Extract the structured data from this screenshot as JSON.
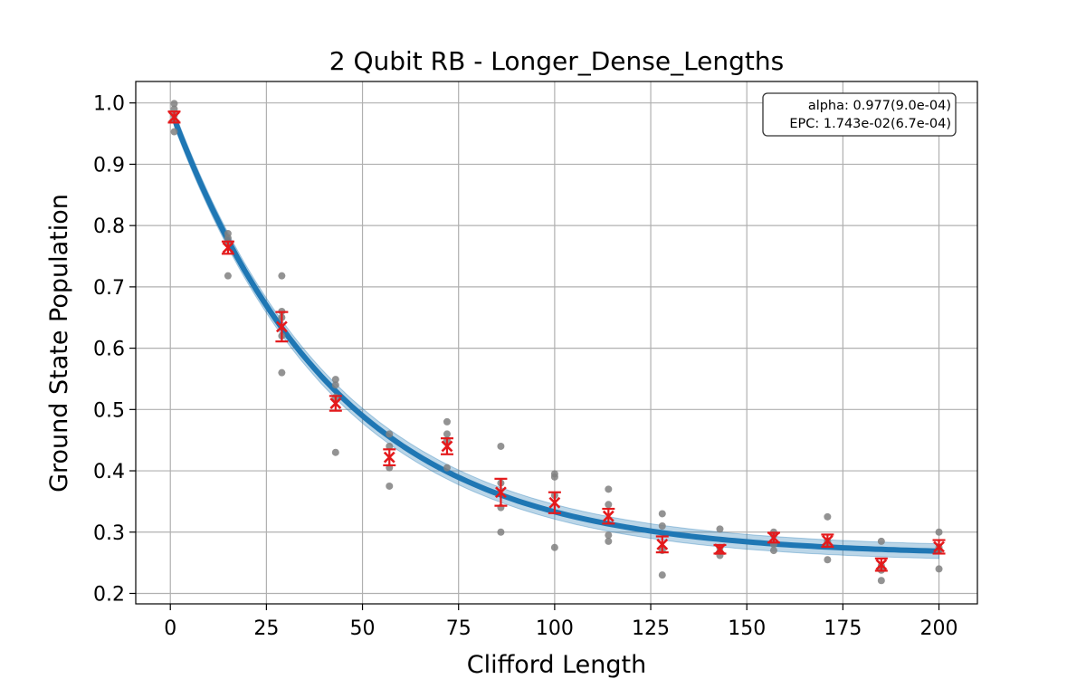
{
  "chart_data": {
    "type": "scatter",
    "title": "2 Qubit RB - Longer_Dense_Lengths",
    "xlabel": "Clifford Length",
    "ylabel": "Ground State Population",
    "xlim": [
      -9,
      210
    ],
    "ylim": [
      0.183,
      1.035
    ],
    "xticks": [
      0,
      25,
      50,
      75,
      100,
      125,
      150,
      175,
      200
    ],
    "yticks": [
      0.2,
      0.3,
      0.4,
      0.5,
      0.6,
      0.7,
      0.8,
      0.9,
      1.0
    ],
    "xtick_labels": [
      "0",
      "25",
      "50",
      "75",
      "100",
      "125",
      "150",
      "175",
      "200"
    ],
    "ytick_labels": [
      "0.2",
      "0.3",
      "0.4",
      "0.5",
      "0.6",
      "0.7",
      "0.8",
      "0.9",
      "1.0"
    ],
    "grid": true,
    "annotation": {
      "lines": [
        "alpha: 0.977(9.0e-04)",
        "EPC: 1.743e-02(6.7e-04)"
      ],
      "placement": "top-right"
    },
    "fit": {
      "model": "A * alpha^x + B",
      "A": 0.729,
      "alpha": 0.977,
      "B": 0.262,
      "band_sigma_y": 0.012,
      "color": "#1f77b4"
    },
    "series": [
      {
        "kind": "raw_samples",
        "color": "#808080",
        "points": [
          [
            1,
            0.999
          ],
          [
            1,
            0.99
          ],
          [
            1,
            0.98
          ],
          [
            1,
            0.972
          ],
          [
            1,
            0.953
          ],
          [
            15,
            0.787
          ],
          [
            15,
            0.78
          ],
          [
            15,
            0.77
          ],
          [
            15,
            0.718
          ],
          [
            29,
            0.718
          ],
          [
            29,
            0.66
          ],
          [
            29,
            0.65
          ],
          [
            29,
            0.62
          ],
          [
            29,
            0.56
          ],
          [
            43,
            0.549
          ],
          [
            43,
            0.54
          ],
          [
            43,
            0.52
          ],
          [
            43,
            0.43
          ],
          [
            57,
            0.46
          ],
          [
            57,
            0.44
          ],
          [
            57,
            0.405
          ],
          [
            57,
            0.375
          ],
          [
            72,
            0.48
          ],
          [
            72,
            0.46
          ],
          [
            72,
            0.45
          ],
          [
            72,
            0.405
          ],
          [
            86,
            0.44
          ],
          [
            86,
            0.38
          ],
          [
            86,
            0.34
          ],
          [
            86,
            0.3
          ],
          [
            100,
            0.395
          ],
          [
            100,
            0.39
          ],
          [
            100,
            0.36
          ],
          [
            100,
            0.275
          ],
          [
            114,
            0.37
          ],
          [
            114,
            0.345
          ],
          [
            114,
            0.295
          ],
          [
            114,
            0.285
          ],
          [
            128,
            0.33
          ],
          [
            128,
            0.31
          ],
          [
            128,
            0.27
          ],
          [
            128,
            0.23
          ],
          [
            143,
            0.305
          ],
          [
            143,
            0.275
          ],
          [
            143,
            0.268
          ],
          [
            143,
            0.262
          ],
          [
            157,
            0.3
          ],
          [
            157,
            0.295
          ],
          [
            157,
            0.28
          ],
          [
            157,
            0.27
          ],
          [
            171,
            0.325
          ],
          [
            171,
            0.285
          ],
          [
            171,
            0.28
          ],
          [
            171,
            0.255
          ],
          [
            185,
            0.285
          ],
          [
            185,
            0.245
          ],
          [
            185,
            0.238
          ],
          [
            185,
            0.221
          ],
          [
            200,
            0.3
          ],
          [
            200,
            0.275
          ],
          [
            200,
            0.27
          ],
          [
            200,
            0.24
          ]
        ]
      },
      {
        "kind": "mean_with_error",
        "color": "#e41a1c",
        "x": [
          1,
          15,
          29,
          43,
          57,
          72,
          86,
          100,
          114,
          128,
          143,
          157,
          171,
          185,
          200
        ],
        "y": [
          0.977,
          0.764,
          0.635,
          0.51,
          0.422,
          0.44,
          0.365,
          0.348,
          0.326,
          0.28,
          0.272,
          0.291,
          0.286,
          0.247,
          0.276
        ],
        "yerr": [
          0.009,
          0.01,
          0.024,
          0.012,
          0.013,
          0.013,
          0.022,
          0.017,
          0.012,
          0.013,
          0.007,
          0.008,
          0.01,
          0.01,
          0.011
        ]
      }
    ]
  }
}
